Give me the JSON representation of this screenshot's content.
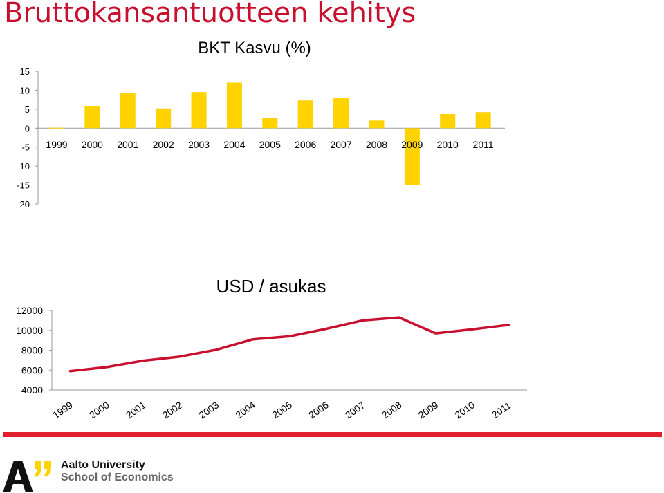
{
  "slide_title": "Bruttokansantuotteen kehitys",
  "colors": {
    "title": "#c8102e",
    "bar": "#ffd200",
    "line": "#c8102e",
    "divider": "#e0202e",
    "axis": "#999999"
  },
  "logo": {
    "line1": "Aalto University",
    "line2": "School of Economics"
  },
  "chart_data": [
    {
      "type": "bar",
      "title": "BKT Kasvu (%)",
      "categories": [
        "1999",
        "2000",
        "2001",
        "2002",
        "2003",
        "2004",
        "2005",
        "2006",
        "2007",
        "2008",
        "2009",
        "2010",
        "2011"
      ],
      "values": [
        0.1,
        5.8,
        9.2,
        5.2,
        9.5,
        12,
        2.7,
        7.3,
        7.9,
        2,
        -15,
        3.7,
        4.2
      ],
      "yticks": [
        15,
        10,
        5,
        0,
        -5,
        -10,
        -15,
        -20
      ],
      "ylim": [
        -20,
        15
      ],
      "grid": false,
      "legend": "none"
    },
    {
      "type": "line",
      "title": "USD / asukas",
      "categories": [
        "1999",
        "2000",
        "2001",
        "2002",
        "2003",
        "2004",
        "2005",
        "2006",
        "2007",
        "2008",
        "2009",
        "2010",
        "2011"
      ],
      "values": [
        5900,
        6300,
        6950,
        7350,
        8050,
        9100,
        9400,
        10150,
        11000,
        11300,
        9700,
        10100,
        10550
      ],
      "yticks": [
        12000,
        10000,
        8000,
        6000,
        4000
      ],
      "ylim": [
        4000,
        12000
      ],
      "grid": false,
      "legend": "none"
    }
  ]
}
